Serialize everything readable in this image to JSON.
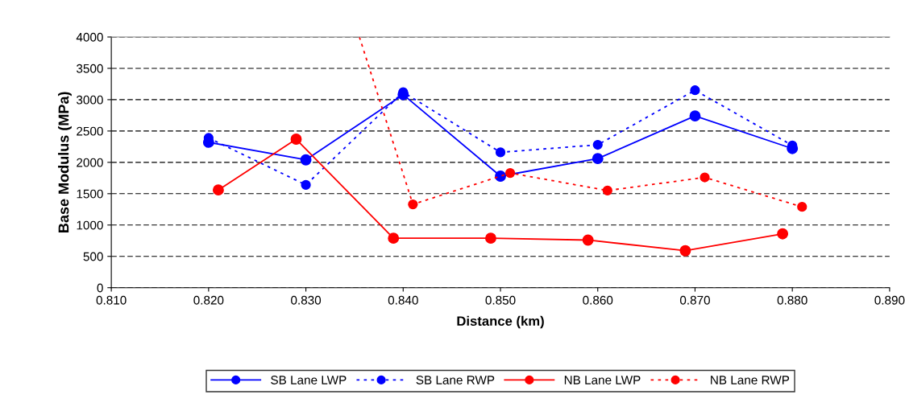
{
  "chart_data": {
    "type": "line",
    "xlabel": "Distance (km)",
    "ylabel": "Base Modulus (MPa)",
    "xlim": [
      0.81,
      0.89
    ],
    "xticks": [
      {
        "value": 0.81,
        "label": "0.810"
      },
      {
        "value": 0.82,
        "label": "0.820"
      },
      {
        "value": 0.83,
        "label": "0.830"
      },
      {
        "value": 0.84,
        "label": "0.840"
      },
      {
        "value": 0.85,
        "label": "0.850"
      },
      {
        "value": 0.86,
        "label": "0.860"
      },
      {
        "value": 0.87,
        "label": "0.870"
      },
      {
        "value": 0.88,
        "label": "0.880"
      },
      {
        "value": 0.89,
        "label": "0.890"
      }
    ],
    "ylim": [
      0,
      4000
    ],
    "yticks": [
      0,
      500,
      1000,
      1500,
      2000,
      2500,
      3000,
      3500,
      4000
    ],
    "grid": "y",
    "legend": "bottom",
    "marker": "circle",
    "series": [
      {
        "name": "SB Lane LWP",
        "color": "#0000ff",
        "line_style": "solid",
        "x": [
          0.82,
          0.83,
          0.84,
          0.85,
          0.86,
          0.87,
          0.88
        ],
        "values": [
          2320,
          2040,
          3080,
          1780,
          2060,
          2740,
          2220
        ]
      },
      {
        "name": "SB Lane RWP",
        "color": "#0000ff",
        "line_style": "dotted",
        "x": [
          0.82,
          0.83,
          0.84,
          0.85,
          0.86,
          0.87,
          0.88
        ],
        "values": [
          2390,
          1640,
          3120,
          2160,
          2280,
          3150,
          2270
        ]
      },
      {
        "name": "NB Lane LWP",
        "color": "#ff0000",
        "line_style": "solid",
        "x": [
          0.821,
          0.829,
          0.839,
          0.849,
          0.859,
          0.869,
          0.879
        ],
        "values": [
          1560,
          2370,
          790,
          790,
          760,
          590,
          860
        ]
      },
      {
        "name": "NB Lane RWP",
        "color": "#ff0000",
        "line_style": "dotted",
        "x": [
          0.8355,
          0.841,
          0.851,
          0.861,
          0.871,
          0.881
        ],
        "values": [
          4000,
          1330,
          1830,
          1550,
          1760,
          1290
        ]
      }
    ]
  }
}
